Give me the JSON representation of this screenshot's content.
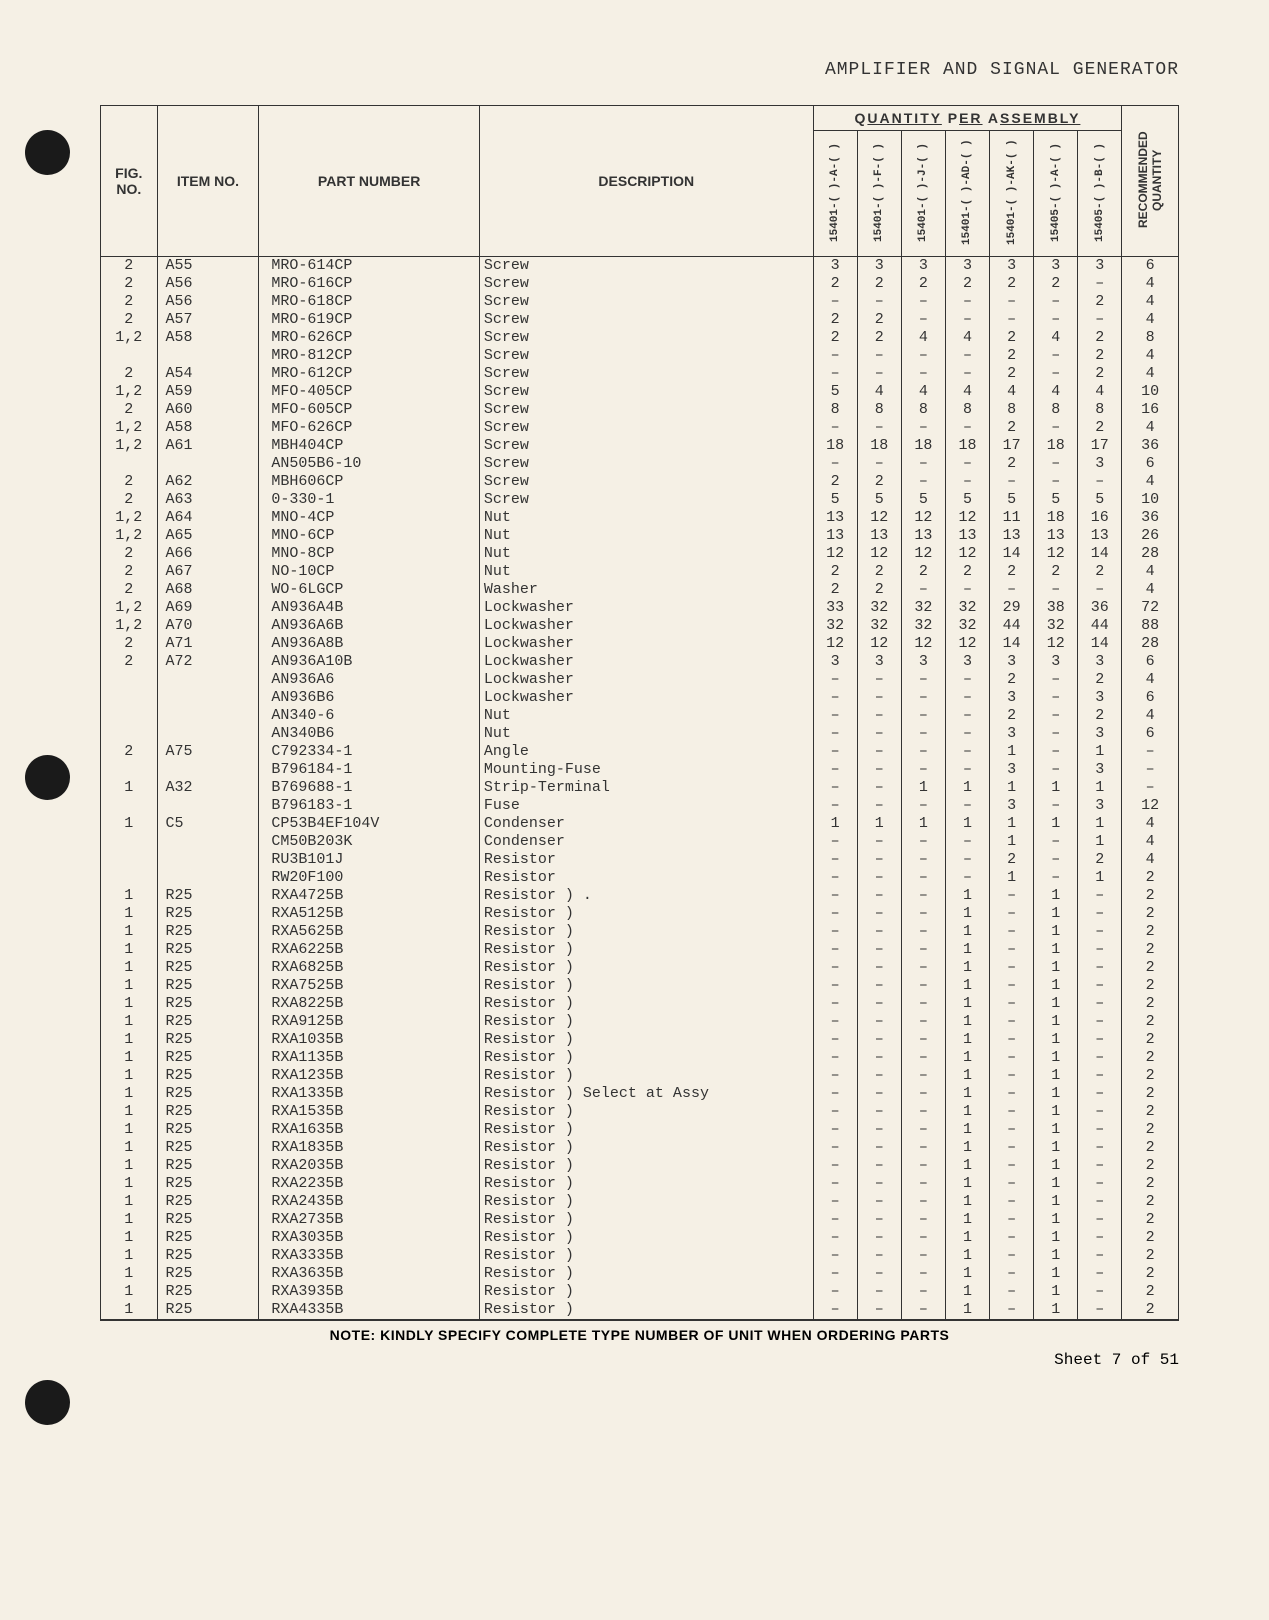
{
  "header": {
    "title": "AMPLIFIER AND SIGNAL GENERATOR"
  },
  "table": {
    "col_headers": {
      "fig": "FIG. NO.",
      "item": "ITEM NO.",
      "part": "PART NUMBER",
      "desc": "DESCRIPTION",
      "qty_group": "QUANTITY PER ASSEMBLY",
      "rec": "RECOMMENDED QUANTITY"
    },
    "qty_cols": [
      "15401-( )-A-( )",
      "15401-( )-F-( )",
      "15401-( )-J-( )",
      "15401-( )-AD-( )",
      "15401-( )-AK-( )",
      "15405-( )-A-( )",
      "15405-( )-B-( )"
    ],
    "rows": [
      {
        "fig": "2",
        "item": "A55",
        "part": "MRO-614CP",
        "desc": "Screw",
        "q": [
          "3",
          "3",
          "3",
          "3",
          "3",
          "3",
          "3"
        ],
        "rec": "6"
      },
      {
        "fig": "2",
        "item": "A56",
        "part": "MRO-616CP",
        "desc": "Screw",
        "q": [
          "2",
          "2",
          "2",
          "2",
          "2",
          "2",
          "–"
        ],
        "rec": "4"
      },
      {
        "fig": "2",
        "item": "A56",
        "part": "MRO-618CP",
        "desc": "Screw",
        "q": [
          "–",
          "–",
          "–",
          "–",
          "–",
          "–",
          "2"
        ],
        "rec": "4"
      },
      {
        "fig": "2",
        "item": "A57",
        "part": "MRO-619CP",
        "desc": "Screw",
        "q": [
          "2",
          "2",
          "–",
          "–",
          "–",
          "–",
          "–"
        ],
        "rec": "4"
      },
      {
        "fig": "1,2",
        "item": "A58",
        "part": "MRO-626CP",
        "desc": "Screw",
        "q": [
          "2",
          "2",
          "4",
          "4",
          "2",
          "4",
          "2"
        ],
        "rec": "8"
      },
      {
        "fig": "",
        "item": "",
        "part": "MRO-812CP",
        "desc": "Screw",
        "q": [
          "–",
          "–",
          "–",
          "–",
          "2",
          "–",
          "2"
        ],
        "rec": "4"
      },
      {
        "fig": "2",
        "item": "A54",
        "part": "MRO-612CP",
        "desc": "Screw",
        "q": [
          "–",
          "–",
          "–",
          "–",
          "2",
          "–",
          "2"
        ],
        "rec": "4"
      },
      {
        "fig": "1,2",
        "item": "A59",
        "part": "MFO-405CP",
        "desc": "Screw",
        "q": [
          "5",
          "4",
          "4",
          "4",
          "4",
          "4",
          "4"
        ],
        "rec": "10"
      },
      {
        "fig": "2",
        "item": "A60",
        "part": "MFO-605CP",
        "desc": "Screw",
        "q": [
          "8",
          "8",
          "8",
          "8",
          "8",
          "8",
          "8"
        ],
        "rec": "16"
      },
      {
        "fig": "1,2",
        "item": "A58",
        "part": "MFO-626CP",
        "desc": "Screw",
        "q": [
          "–",
          "–",
          "–",
          "–",
          "2",
          "–",
          "2"
        ],
        "rec": "4"
      },
      {
        "fig": "1,2",
        "item": "A61",
        "part": "MBH404CP",
        "desc": "Screw",
        "q": [
          "18",
          "18",
          "18",
          "18",
          "17",
          "18",
          "17"
        ],
        "rec": "36"
      },
      {
        "fig": "",
        "item": "",
        "part": "AN505B6-10",
        "desc": "Screw",
        "q": [
          "–",
          "–",
          "–",
          "–",
          "2",
          "–",
          "3"
        ],
        "rec": "6"
      },
      {
        "fig": "2",
        "item": "A62",
        "part": "MBH606CP",
        "desc": "Screw",
        "q": [
          "2",
          "2",
          "–",
          "–",
          "–",
          "–",
          "–"
        ],
        "rec": "4"
      },
      {
        "fig": "2",
        "item": "A63",
        "part": "0-330-1",
        "desc": "Screw",
        "q": [
          "5",
          "5",
          "5",
          "5",
          "5",
          "5",
          "5"
        ],
        "rec": "10"
      },
      {
        "fig": "1,2",
        "item": "A64",
        "part": "MNO-4CP",
        "desc": "Nut",
        "q": [
          "13",
          "12",
          "12",
          "12",
          "11",
          "18",
          "16"
        ],
        "rec": "36"
      },
      {
        "fig": "1,2",
        "item": "A65",
        "part": "MNO-6CP",
        "desc": "Nut",
        "q": [
          "13",
          "13",
          "13",
          "13",
          "13",
          "13",
          "13"
        ],
        "rec": "26"
      },
      {
        "fig": "2",
        "item": "A66",
        "part": "MNO-8CP",
        "desc": "Nut",
        "q": [
          "12",
          "12",
          "12",
          "12",
          "14",
          "12",
          "14"
        ],
        "rec": "28"
      },
      {
        "fig": "2",
        "item": "A67",
        "part": "NO-10CP",
        "desc": "Nut",
        "q": [
          "2",
          "2",
          "2",
          "2",
          "2",
          "2",
          "2"
        ],
        "rec": "4"
      },
      {
        "fig": "2",
        "item": "A68",
        "part": "WO-6LGCP",
        "desc": "Washer",
        "q": [
          "2",
          "2",
          "–",
          "–",
          "–",
          "–",
          "–"
        ],
        "rec": "4"
      },
      {
        "fig": "1,2",
        "item": "A69",
        "part": "AN936A4B",
        "desc": "Lockwasher",
        "q": [
          "33",
          "32",
          "32",
          "32",
          "29",
          "38",
          "36"
        ],
        "rec": "72"
      },
      {
        "fig": "1,2",
        "item": "A70",
        "part": "AN936A6B",
        "desc": "Lockwasher",
        "q": [
          "32",
          "32",
          "32",
          "32",
          "44",
          "32",
          "44"
        ],
        "rec": "88"
      },
      {
        "fig": "2",
        "item": "A71",
        "part": "AN936A8B",
        "desc": "Lockwasher",
        "q": [
          "12",
          "12",
          "12",
          "12",
          "14",
          "12",
          "14"
        ],
        "rec": "28"
      },
      {
        "fig": "2",
        "item": "A72",
        "part": "AN936A10B",
        "desc": "Lockwasher",
        "q": [
          "3",
          "3",
          "3",
          "3",
          "3",
          "3",
          "3"
        ],
        "rec": "6"
      },
      {
        "fig": "",
        "item": "",
        "part": "AN936A6",
        "desc": "Lockwasher",
        "q": [
          "–",
          "–",
          "–",
          "–",
          "2",
          "–",
          "2"
        ],
        "rec": "4"
      },
      {
        "fig": "",
        "item": "",
        "part": "AN936B6",
        "desc": "Lockwasher",
        "q": [
          "–",
          "–",
          "–",
          "–",
          "3",
          "–",
          "3"
        ],
        "rec": "6"
      },
      {
        "fig": "",
        "item": "",
        "part": "AN340-6",
        "desc": "Nut",
        "q": [
          "–",
          "–",
          "–",
          "–",
          "2",
          "–",
          "2"
        ],
        "rec": "4"
      },
      {
        "fig": "",
        "item": "",
        "part": "AN340B6",
        "desc": "Nut",
        "q": [
          "–",
          "–",
          "–",
          "–",
          "3",
          "–",
          "3"
        ],
        "rec": "6"
      },
      {
        "fig": "2",
        "item": "A75",
        "part": "C792334-1",
        "desc": "Angle",
        "q": [
          "–",
          "–",
          "–",
          "–",
          "1",
          "–",
          "1"
        ],
        "rec": "–"
      },
      {
        "fig": "",
        "item": "",
        "part": "B796184-1",
        "desc": "Mounting-Fuse",
        "q": [
          "–",
          "–",
          "–",
          "–",
          "3",
          "–",
          "3"
        ],
        "rec": "–"
      },
      {
        "fig": "1",
        "item": "A32",
        "part": "B769688-1",
        "desc": "Strip-Terminal",
        "q": [
          "–",
          "–",
          "1",
          "1",
          "1",
          "1",
          "1"
        ],
        "rec": "–"
      },
      {
        "fig": "",
        "item": "",
        "part": "B796183-1",
        "desc": "Fuse",
        "q": [
          "–",
          "–",
          "–",
          "–",
          "3",
          "–",
          "3"
        ],
        "rec": "12"
      },
      {
        "fig": "1",
        "item": "C5",
        "part": "CP53B4EF104V",
        "desc": "Condenser",
        "q": [
          "1",
          "1",
          "1",
          "1",
          "1",
          "1",
          "1"
        ],
        "rec": "4"
      },
      {
        "fig": "",
        "item": "",
        "part": "CM50B203K",
        "desc": "Condenser",
        "q": [
          "–",
          "–",
          "–",
          "–",
          "1",
          "–",
          "1"
        ],
        "rec": "4"
      },
      {
        "fig": "",
        "item": "",
        "part": "RU3B101J",
        "desc": "Resistor",
        "q": [
          "–",
          "–",
          "–",
          "–",
          "2",
          "–",
          "2"
        ],
        "rec": "4"
      },
      {
        "fig": "",
        "item": "",
        "part": "RW20F100",
        "desc": "Resistor",
        "q": [
          "–",
          "–",
          "–",
          "–",
          "1",
          "–",
          "1"
        ],
        "rec": "2"
      },
      {
        "fig": "1",
        "item": "R25",
        "part": "RXA4725B",
        "desc": "Resistor  ) .",
        "q": [
          "–",
          "–",
          "–",
          "1",
          "–",
          "1",
          "–"
        ],
        "rec": "2"
      },
      {
        "fig": "1",
        "item": "R25",
        "part": "RXA5125B",
        "desc": "Resistor  )",
        "q": [
          "–",
          "–",
          "–",
          "1",
          "–",
          "1",
          "–"
        ],
        "rec": "2"
      },
      {
        "fig": "1",
        "item": "R25",
        "part": "RXA5625B",
        "desc": "Resistor  )",
        "q": [
          "–",
          "–",
          "–",
          "1",
          "–",
          "1",
          "–"
        ],
        "rec": "2"
      },
      {
        "fig": "1",
        "item": "R25",
        "part": "RXA6225B",
        "desc": "Resistor  )",
        "q": [
          "–",
          "–",
          "–",
          "1",
          "–",
          "1",
          "–"
        ],
        "rec": "2"
      },
      {
        "fig": "1",
        "item": "R25",
        "part": "RXA6825B",
        "desc": "Resistor  )",
        "q": [
          "–",
          "–",
          "–",
          "1",
          "–",
          "1",
          "–"
        ],
        "rec": "2"
      },
      {
        "fig": "1",
        "item": "R25",
        "part": "RXA7525B",
        "desc": "Resistor  )",
        "q": [
          "–",
          "–",
          "–",
          "1",
          "–",
          "1",
          "–"
        ],
        "rec": "2"
      },
      {
        "fig": "1",
        "item": "R25",
        "part": "RXA8225B",
        "desc": "Resistor  )",
        "q": [
          "–",
          "–",
          "–",
          "1",
          "–",
          "1",
          "–"
        ],
        "rec": "2"
      },
      {
        "fig": "1",
        "item": "R25",
        "part": "RXA9125B",
        "desc": "Resistor  )",
        "q": [
          "–",
          "–",
          "–",
          "1",
          "–",
          "1",
          "–"
        ],
        "rec": "2"
      },
      {
        "fig": "1",
        "item": "R25",
        "part": "RXA1035B",
        "desc": "Resistor  )",
        "q": [
          "–",
          "–",
          "–",
          "1",
          "–",
          "1",
          "–"
        ],
        "rec": "2"
      },
      {
        "fig": "1",
        "item": "R25",
        "part": "RXA1135B",
        "desc": "Resistor  )",
        "q": [
          "–",
          "–",
          "–",
          "1",
          "–",
          "1",
          "–"
        ],
        "rec": "2"
      },
      {
        "fig": "1",
        "item": "R25",
        "part": "RXA1235B",
        "desc": "Resistor  )",
        "q": [
          "–",
          "–",
          "–",
          "1",
          "–",
          "1",
          "–"
        ],
        "rec": "2"
      },
      {
        "fig": "1",
        "item": "R25",
        "part": "RXA1335B",
        "desc": "Resistor  )   Select at Assy",
        "q": [
          "–",
          "–",
          "–",
          "1",
          "–",
          "1",
          "–"
        ],
        "rec": "2"
      },
      {
        "fig": "1",
        "item": "R25",
        "part": "RXA1535B",
        "desc": "Resistor  )",
        "q": [
          "–",
          "–",
          "–",
          "1",
          "–",
          "1",
          "–"
        ],
        "rec": "2"
      },
      {
        "fig": "1",
        "item": "R25",
        "part": "RXA1635B",
        "desc": "Resistor  )",
        "q": [
          "–",
          "–",
          "–",
          "1",
          "–",
          "1",
          "–"
        ],
        "rec": "2"
      },
      {
        "fig": "1",
        "item": "R25",
        "part": "RXA1835B",
        "desc": "Resistor  )",
        "q": [
          "–",
          "–",
          "–",
          "1",
          "–",
          "1",
          "–"
        ],
        "rec": "2"
      },
      {
        "fig": "1",
        "item": "R25",
        "part": "RXA2035B",
        "desc": "Resistor  )",
        "q": [
          "–",
          "–",
          "–",
          "1",
          "–",
          "1",
          "–"
        ],
        "rec": "2"
      },
      {
        "fig": "1",
        "item": "R25",
        "part": "RXA2235B",
        "desc": "Resistor  )",
        "q": [
          "–",
          "–",
          "–",
          "1",
          "–",
          "1",
          "–"
        ],
        "rec": "2"
      },
      {
        "fig": "1",
        "item": "R25",
        "part": "RXA2435B",
        "desc": "Resistor  )",
        "q": [
          "–",
          "–",
          "–",
          "1",
          "–",
          "1",
          "–"
        ],
        "rec": "2"
      },
      {
        "fig": "1",
        "item": "R25",
        "part": "RXA2735B",
        "desc": "Resistor  )",
        "q": [
          "–",
          "–",
          "–",
          "1",
          "–",
          "1",
          "–"
        ],
        "rec": "2"
      },
      {
        "fig": "1",
        "item": "R25",
        "part": "RXA3035B",
        "desc": "Resistor  )",
        "q": [
          "–",
          "–",
          "–",
          "1",
          "–",
          "1",
          "–"
        ],
        "rec": "2"
      },
      {
        "fig": "1",
        "item": "R25",
        "part": "RXA3335B",
        "desc": "Resistor  )",
        "q": [
          "–",
          "–",
          "–",
          "1",
          "–",
          "1",
          "–"
        ],
        "rec": "2"
      },
      {
        "fig": "1",
        "item": "R25",
        "part": "RXA3635B",
        "desc": "Resistor  )",
        "q": [
          "–",
          "–",
          "–",
          "1",
          "–",
          "1",
          "–"
        ],
        "rec": "2"
      },
      {
        "fig": "1",
        "item": "R25",
        "part": "RXA3935B",
        "desc": "Resistor  )",
        "q": [
          "–",
          "–",
          "–",
          "1",
          "–",
          "1",
          "–"
        ],
        "rec": "2"
      },
      {
        "fig": "1",
        "item": "R25",
        "part": "RXA4335B",
        "desc": "Resistor  )",
        "q": [
          "–",
          "–",
          "–",
          "1",
          "–",
          "1",
          "–"
        ],
        "rec": "2"
      }
    ]
  },
  "footnote": "NOTE: KINDLY SPECIFY COMPLETE TYPE NUMBER OF UNIT WHEN ORDERING PARTS",
  "sheet": "Sheet 7 of 51"
}
